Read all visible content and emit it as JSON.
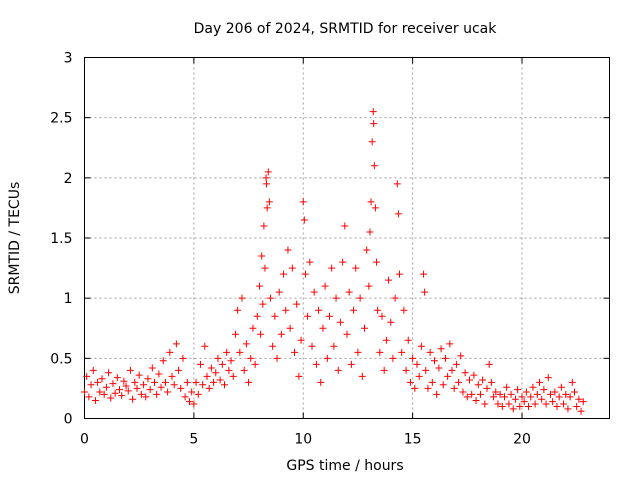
{
  "chart_data": {
    "type": "scatter",
    "title": "Day 206 of 2024, SRMTID for receiver ucak",
    "xlabel": "GPS time / hours",
    "ylabel": "SRMTID / TECUs",
    "xlim": [
      0,
      24
    ],
    "ylim": [
      0,
      3
    ],
    "xticks": [
      0,
      5,
      10,
      15,
      20
    ],
    "yticks": [
      0,
      0.5,
      1,
      1.5,
      2,
      2.5,
      3
    ],
    "xtick_labels": [
      "0",
      "5",
      "10",
      "15",
      "20"
    ],
    "ytick_labels": [
      "0",
      "0.5",
      "1",
      "1.5",
      "2",
      "2.5",
      "3"
    ],
    "grid": true,
    "marker": "+",
    "color": "#ff0000",
    "series": [
      {
        "name": "SRMTID",
        "points": [
          [
            0.0,
            0.22
          ],
          [
            0.1,
            0.35
          ],
          [
            0.2,
            0.18
          ],
          [
            0.3,
            0.28
          ],
          [
            0.4,
            0.4
          ],
          [
            0.5,
            0.15
          ],
          [
            0.6,
            0.3
          ],
          [
            0.7,
            0.22
          ],
          [
            0.8,
            0.33
          ],
          [
            0.9,
            0.2
          ],
          [
            1.0,
            0.26
          ],
          [
            1.1,
            0.38
          ],
          [
            1.2,
            0.17
          ],
          [
            1.3,
            0.29
          ],
          [
            1.4,
            0.21
          ],
          [
            1.5,
            0.34
          ],
          [
            1.6,
            0.24
          ],
          [
            1.7,
            0.19
          ],
          [
            1.8,
            0.31
          ],
          [
            1.9,
            0.27
          ],
          [
            2.0,
            0.23
          ],
          [
            2.1,
            0.4
          ],
          [
            2.2,
            0.16
          ],
          [
            2.3,
            0.3
          ],
          [
            2.4,
            0.25
          ],
          [
            2.5,
            0.36
          ],
          [
            2.6,
            0.2
          ],
          [
            2.7,
            0.28
          ],
          [
            2.8,
            0.18
          ],
          [
            2.9,
            0.33
          ],
          [
            3.0,
            0.24
          ],
          [
            3.1,
            0.42
          ],
          [
            3.2,
            0.3
          ],
          [
            3.3,
            0.2
          ],
          [
            3.4,
            0.37
          ],
          [
            3.5,
            0.26
          ],
          [
            3.6,
            0.48
          ],
          [
            3.7,
            0.3
          ],
          [
            3.8,
            0.22
          ],
          [
            3.9,
            0.55
          ],
          [
            4.0,
            0.35
          ],
          [
            4.1,
            0.28
          ],
          [
            4.2,
            0.62
          ],
          [
            4.3,
            0.4
          ],
          [
            4.4,
            0.25
          ],
          [
            4.5,
            0.5
          ],
          [
            4.6,
            0.18
          ],
          [
            4.7,
            0.3
          ],
          [
            4.8,
            0.14
          ],
          [
            4.9,
            0.22
          ],
          [
            5.0,
            0.12
          ],
          [
            5.1,
            0.3
          ],
          [
            5.2,
            0.2
          ],
          [
            5.3,
            0.45
          ],
          [
            5.4,
            0.28
          ],
          [
            5.5,
            0.6
          ],
          [
            5.6,
            0.35
          ],
          [
            5.7,
            0.25
          ],
          [
            5.8,
            0.42
          ],
          [
            5.9,
            0.3
          ],
          [
            6.0,
            0.38
          ],
          [
            6.1,
            0.5
          ],
          [
            6.2,
            0.32
          ],
          [
            6.3,
            0.45
          ],
          [
            6.4,
            0.28
          ],
          [
            6.5,
            0.55
          ],
          [
            6.6,
            0.4
          ],
          [
            6.7,
            0.48
          ],
          [
            6.8,
            0.35
          ],
          [
            6.9,
            0.7
          ],
          [
            7.0,
            0.9
          ],
          [
            7.1,
            0.55
          ],
          [
            7.2,
            1.0
          ],
          [
            7.3,
            0.4
          ],
          [
            7.4,
            0.62
          ],
          [
            7.5,
            0.3
          ],
          [
            7.6,
            0.5
          ],
          [
            7.7,
            0.75
          ],
          [
            7.8,
            0.45
          ],
          [
            7.9,
            0.85
          ],
          [
            8.0,
            1.1
          ],
          [
            8.05,
            0.7
          ],
          [
            8.1,
            1.35
          ],
          [
            8.15,
            0.95
          ],
          [
            8.2,
            1.6
          ],
          [
            8.25,
            1.25
          ],
          [
            8.3,
            2.0
          ],
          [
            8.32,
            1.95
          ],
          [
            8.35,
            1.75
          ],
          [
            8.4,
            2.05
          ],
          [
            8.45,
            1.8
          ],
          [
            8.5,
            1.0
          ],
          [
            8.6,
            0.6
          ],
          [
            8.7,
            0.85
          ],
          [
            8.8,
            0.5
          ],
          [
            8.9,
            1.05
          ],
          [
            9.0,
            0.7
          ],
          [
            9.1,
            1.2
          ],
          [
            9.2,
            0.9
          ],
          [
            9.3,
            1.4
          ],
          [
            9.4,
            0.75
          ],
          [
            9.5,
            1.25
          ],
          [
            9.6,
            0.55
          ],
          [
            9.7,
            0.95
          ],
          [
            9.8,
            0.35
          ],
          [
            9.9,
            0.65
          ],
          [
            10.0,
            1.8
          ],
          [
            10.05,
            1.65
          ],
          [
            10.1,
            1.2
          ],
          [
            10.2,
            0.85
          ],
          [
            10.3,
            1.3
          ],
          [
            10.4,
            0.6
          ],
          [
            10.5,
            1.05
          ],
          [
            10.6,
            0.45
          ],
          [
            10.7,
            0.9
          ],
          [
            10.8,
            0.3
          ],
          [
            10.9,
            0.75
          ],
          [
            11.0,
            1.1
          ],
          [
            11.1,
            0.5
          ],
          [
            11.2,
            0.85
          ],
          [
            11.3,
            1.25
          ],
          [
            11.4,
            0.6
          ],
          [
            11.5,
            1.0
          ],
          [
            11.6,
            0.4
          ],
          [
            11.7,
            0.8
          ],
          [
            11.8,
            1.3
          ],
          [
            11.9,
            1.6
          ],
          [
            12.0,
            0.7
          ],
          [
            12.1,
            1.05
          ],
          [
            12.2,
            0.45
          ],
          [
            12.3,
            0.9
          ],
          [
            12.4,
            1.25
          ],
          [
            12.5,
            0.55
          ],
          [
            12.6,
            1.0
          ],
          [
            12.7,
            0.35
          ],
          [
            12.8,
            0.75
          ],
          [
            12.9,
            1.4
          ],
          [
            13.0,
            1.1
          ],
          [
            13.05,
            1.55
          ],
          [
            13.1,
            1.8
          ],
          [
            13.15,
            2.3
          ],
          [
            13.2,
            2.55
          ],
          [
            13.22,
            2.45
          ],
          [
            13.25,
            2.1
          ],
          [
            13.3,
            1.75
          ],
          [
            13.35,
            1.3
          ],
          [
            13.4,
            0.9
          ],
          [
            13.5,
            0.55
          ],
          [
            13.6,
            0.85
          ],
          [
            13.7,
            0.4
          ],
          [
            13.8,
            0.65
          ],
          [
            13.9,
            1.15
          ],
          [
            14.0,
            0.8
          ],
          [
            14.1,
            0.5
          ],
          [
            14.2,
            1.0
          ],
          [
            14.3,
            1.95
          ],
          [
            14.35,
            1.7
          ],
          [
            14.4,
            1.2
          ],
          [
            14.5,
            0.55
          ],
          [
            14.6,
            0.9
          ],
          [
            14.7,
            0.4
          ],
          [
            14.8,
            0.65
          ],
          [
            14.9,
            0.3
          ],
          [
            15.0,
            0.5
          ],
          [
            15.1,
            0.25
          ],
          [
            15.2,
            0.45
          ],
          [
            15.3,
            0.35
          ],
          [
            15.4,
            0.6
          ],
          [
            15.5,
            1.2
          ],
          [
            15.55,
            1.05
          ],
          [
            15.6,
            0.4
          ],
          [
            15.7,
            0.25
          ],
          [
            15.8,
            0.55
          ],
          [
            15.9,
            0.3
          ],
          [
            16.0,
            0.48
          ],
          [
            16.1,
            0.2
          ],
          [
            16.2,
            0.42
          ],
          [
            16.3,
            0.58
          ],
          [
            16.4,
            0.28
          ],
          [
            16.5,
            0.5
          ],
          [
            16.6,
            0.35
          ],
          [
            16.7,
            0.62
          ],
          [
            16.8,
            0.4
          ],
          [
            16.9,
            0.25
          ],
          [
            17.0,
            0.45
          ],
          [
            17.1,
            0.3
          ],
          [
            17.2,
            0.52
          ],
          [
            17.3,
            0.22
          ],
          [
            17.4,
            0.38
          ],
          [
            17.5,
            0.18
          ],
          [
            17.6,
            0.32
          ],
          [
            17.7,
            0.2
          ],
          [
            17.8,
            0.36
          ],
          [
            17.9,
            0.15
          ],
          [
            18.0,
            0.28
          ],
          [
            18.1,
            0.2
          ],
          [
            18.2,
            0.32
          ],
          [
            18.3,
            0.12
          ],
          [
            18.4,
            0.25
          ],
          [
            18.5,
            0.45
          ],
          [
            18.6,
            0.3
          ],
          [
            18.7,
            0.18
          ],
          [
            18.8,
            0.22
          ],
          [
            18.9,
            0.12
          ],
          [
            19.0,
            0.2
          ],
          [
            19.1,
            0.1
          ],
          [
            19.2,
            0.18
          ],
          [
            19.3,
            0.26
          ],
          [
            19.4,
            0.12
          ],
          [
            19.5,
            0.2
          ],
          [
            19.6,
            0.08
          ],
          [
            19.7,
            0.16
          ],
          [
            19.8,
            0.24
          ],
          [
            19.9,
            0.1
          ],
          [
            20.0,
            0.18
          ],
          [
            20.1,
            0.14
          ],
          [
            20.2,
            0.22
          ],
          [
            20.3,
            0.1
          ],
          [
            20.4,
            0.18
          ],
          [
            20.5,
            0.26
          ],
          [
            20.6,
            0.12
          ],
          [
            20.7,
            0.2
          ],
          [
            20.8,
            0.3
          ],
          [
            20.9,
            0.16
          ],
          [
            21.0,
            0.24
          ],
          [
            21.1,
            0.12
          ],
          [
            21.2,
            0.34
          ],
          [
            21.3,
            0.2
          ],
          [
            21.4,
            0.14
          ],
          [
            21.5,
            0.22
          ],
          [
            21.6,
            0.1
          ],
          [
            21.7,
            0.18
          ],
          [
            21.8,
            0.26
          ],
          [
            21.9,
            0.12
          ],
          [
            22.0,
            0.2
          ],
          [
            22.1,
            0.08
          ],
          [
            22.2,
            0.18
          ],
          [
            22.3,
            0.3
          ],
          [
            22.4,
            0.22
          ],
          [
            22.5,
            0.1
          ],
          [
            22.6,
            0.16
          ],
          [
            22.7,
            0.06
          ],
          [
            22.8,
            0.14
          ]
        ]
      }
    ]
  }
}
